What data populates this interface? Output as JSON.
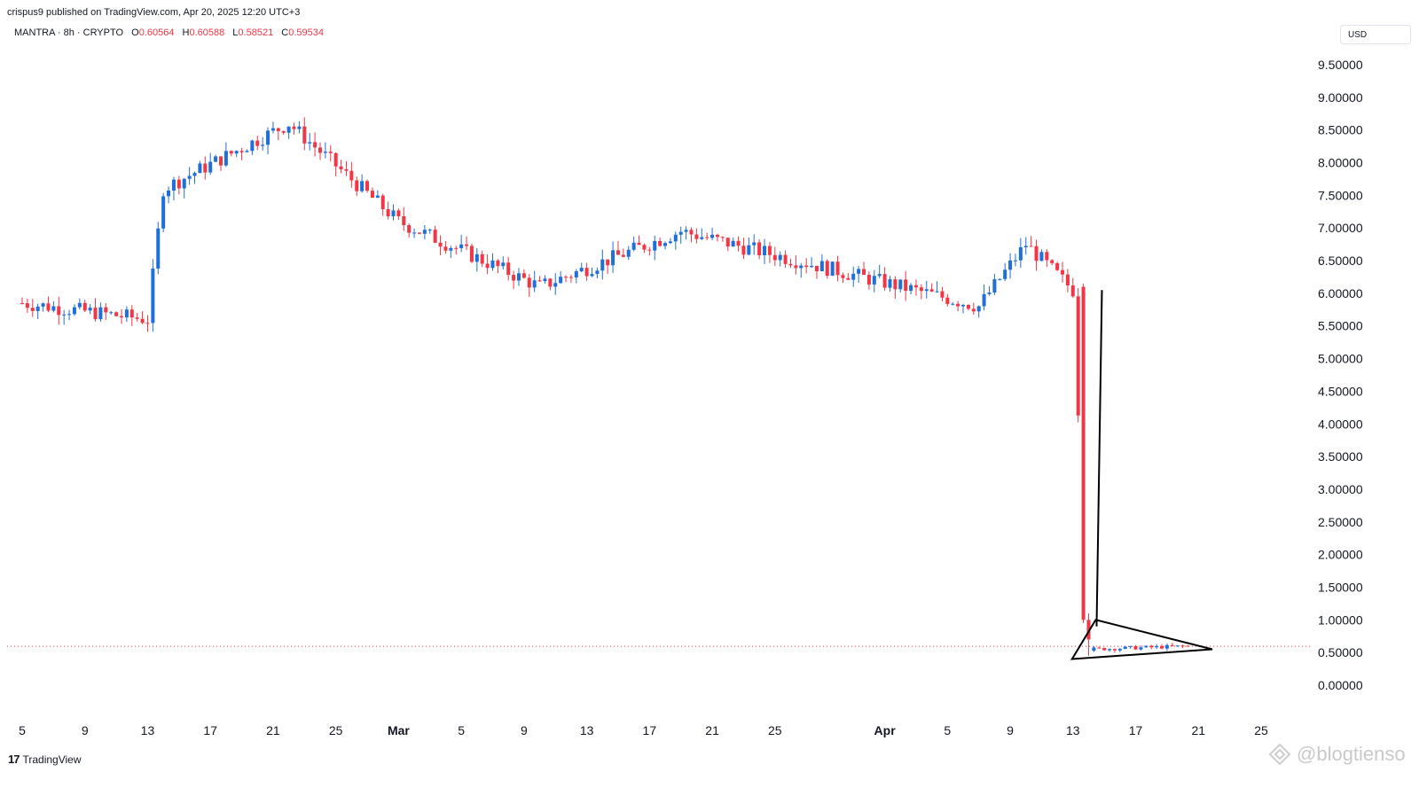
{
  "header": {
    "published": "crispus9 published on TradingView.com, Apr 20, 2025 12:20 UTC+3"
  },
  "legend": {
    "symbol": "MANTRA · 8h · CRYPTO",
    "o_label": "O",
    "o_value": "0.60564",
    "h_label": "H",
    "h_value": "0.60588",
    "l_label": "L",
    "l_value": "0.58521",
    "c_label": "C",
    "c_value": "0.59534"
  },
  "currency": "USD",
  "footer": {
    "logo_mark": "17",
    "logo_text": "TradingView"
  },
  "watermark": {
    "icon": "diamond-logo-icon",
    "text": "@blogtienso"
  },
  "colors": {
    "up": "#1e6fd9",
    "down": "#f23645",
    "price_line": "#f23645",
    "drawing": "#000000"
  },
  "chart_data": {
    "type": "candlestick",
    "title": "",
    "xlabel": "",
    "ylabel": "",
    "ylim": [
      -0.2,
      9.9
    ],
    "y_ticks": [
      "9.50000",
      "9.00000",
      "8.50000",
      "8.00000",
      "7.50000",
      "7.00000",
      "6.50000",
      "6.00000",
      "5.50000",
      "5.00000",
      "4.50000",
      "4.00000",
      "3.50000",
      "3.00000",
      "2.50000",
      "2.00000",
      "1.50000",
      "1.00000",
      "0.50000",
      "0.00000"
    ],
    "x_ticks": [
      {
        "label": "5",
        "bold": false
      },
      {
        "label": "9",
        "bold": false
      },
      {
        "label": "13",
        "bold": false
      },
      {
        "label": "17",
        "bold": false
      },
      {
        "label": "21",
        "bold": false
      },
      {
        "label": "25",
        "bold": false
      },
      {
        "label": "Mar",
        "bold": true
      },
      {
        "label": "5",
        "bold": false
      },
      {
        "label": "9",
        "bold": false
      },
      {
        "label": "13",
        "bold": false
      },
      {
        "label": "17",
        "bold": false
      },
      {
        "label": "21",
        "bold": false
      },
      {
        "label": "25",
        "bold": false
      },
      {
        "label": "Apr",
        "bold": true
      },
      {
        "label": "5",
        "bold": false
      },
      {
        "label": "9",
        "bold": false
      },
      {
        "label": "13",
        "bold": false
      },
      {
        "label": "17",
        "bold": false
      },
      {
        "label": "21",
        "bold": false
      },
      {
        "label": "25",
        "bold": false
      }
    ],
    "last_price": 0.59534,
    "key_points": [
      {
        "date": "Feb 5",
        "price": 5.85
      },
      {
        "date": "Feb 13",
        "price": 5.6
      },
      {
        "date": "Feb 14",
        "price": 7.6
      },
      {
        "date": "Feb 22",
        "price": 8.6
      },
      {
        "date": "Mar 1",
        "price": 7.1
      },
      {
        "date": "Mar 10",
        "price": 6.1
      },
      {
        "date": "Mar 19",
        "price": 6.95
      },
      {
        "date": "Apr 7",
        "price": 5.8
      },
      {
        "date": "Apr 10",
        "price": 6.75
      },
      {
        "date": "Apr 13",
        "price": 6.05
      },
      {
        "date": "Apr 14",
        "price": 0.55
      },
      {
        "date": "Apr 20",
        "price": 0.595
      }
    ],
    "drawings": [
      {
        "type": "line",
        "from": {
          "date": "Apr 14",
          "price": 0.9
        },
        "to": {
          "date": "Apr 14",
          "price": 6.05
        }
      },
      {
        "type": "triangle",
        "points": [
          {
            "date": "Apr 13",
            "price": 0.4
          },
          {
            "date": "Apr 14",
            "price": 1.0
          },
          {
            "date": "Apr 22",
            "price": 0.55
          }
        ]
      }
    ]
  }
}
